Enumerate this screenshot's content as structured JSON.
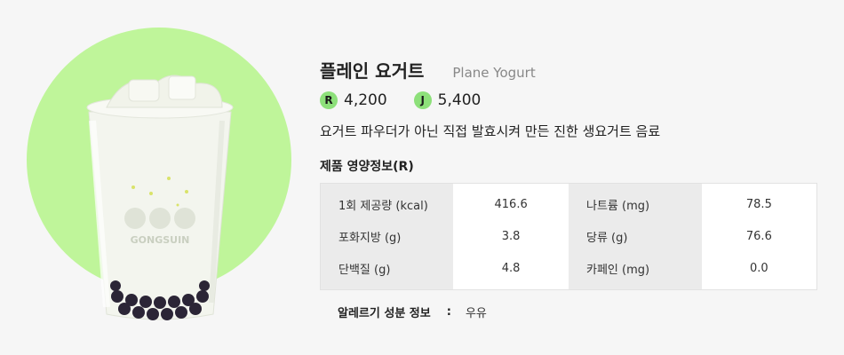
{
  "product": {
    "name_ko": "플레인 요거트",
    "name_en": "Plane Yogurt",
    "description": "요거트 파우더가 아닌 직접 발효시켜 만든 진한 생요거트 음료",
    "image_brand_text": "GONGSUIN"
  },
  "prices": [
    {
      "badge": "R",
      "price": "4,200"
    },
    {
      "badge": "J",
      "price": "5,400"
    }
  ],
  "nutrition": {
    "title": "제품 영양정보(R)",
    "rows": [
      {
        "label1": "1회 제공량 (kcal)",
        "value1": "416.6",
        "label2": "나트륨 (mg)",
        "value2": "78.5"
      },
      {
        "label1": "포화지방 (g)",
        "value1": "3.8",
        "label2": "당류 (g)",
        "value2": "76.6"
      },
      {
        "label1": "단백질 (g)",
        "value1": "4.8",
        "label2": "카페인 (mg)",
        "value2": "0.0"
      }
    ]
  },
  "allergy": {
    "label": "알레르기 성분 정보",
    "separator": ":",
    "value": "우유"
  },
  "colors": {
    "circle_bg": "#bff59a",
    "badge_bg": "#8de07a",
    "page_bg": "#f6f6f6"
  }
}
